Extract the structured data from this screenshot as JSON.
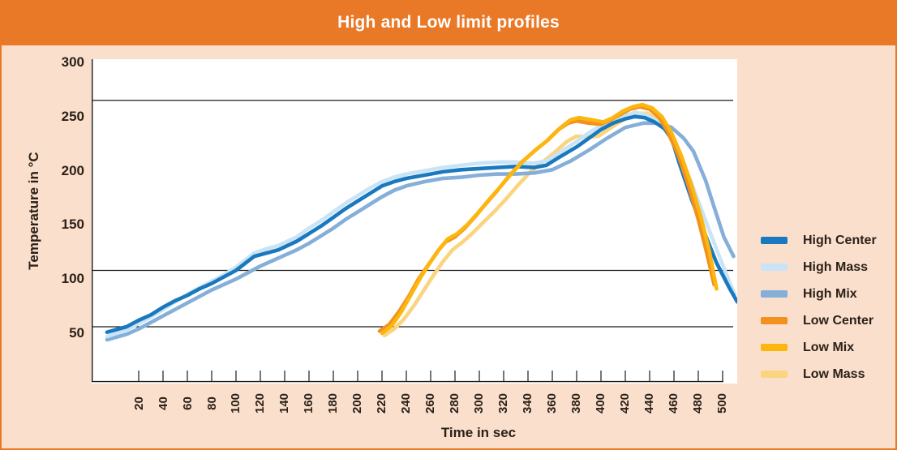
{
  "header": {
    "title": "High and Low limit profiles"
  },
  "colors": {
    "header_bar": "#E97927",
    "frame_border": "#E97927",
    "background": "#FBDFCD",
    "plot_background": "#FFFFFF",
    "axis_line": "#1A1A1A",
    "reference_line": "#1A1A1A",
    "text": "#2B2118",
    "title_text": "#FFFFFF"
  },
  "chart_data": {
    "type": "line",
    "title": "High and Low limit profiles",
    "xlabel": "Time in sec",
    "ylabel": "Temperature in °C",
    "xlim": [
      -19,
      510
    ],
    "ylim": [
      5,
      303
    ],
    "x_ticks": [
      20,
      40,
      60,
      80,
      100,
      120,
      140,
      160,
      180,
      200,
      220,
      240,
      260,
      280,
      300,
      320,
      340,
      360,
      380,
      400,
      420,
      440,
      460,
      480,
      500
    ],
    "y_ticks": [
      300,
      250,
      200,
      150,
      100,
      50
    ],
    "grid": "horizontal-reference-lines-only",
    "reference_lines_temp_c": [
      265,
      108,
      56
    ],
    "legend_position": "right-outside",
    "draw_order": [
      "Low Mass",
      "High Mix",
      "High Mass",
      "High Center",
      "Low Center",
      "Low Mix"
    ],
    "series": [
      {
        "name": "High Center",
        "color": "#1A79BE",
        "points": [
          [
            -6,
            51
          ],
          [
            10,
            56
          ],
          [
            20,
            62
          ],
          [
            30,
            67
          ],
          [
            40,
            74
          ],
          [
            50,
            80
          ],
          [
            60,
            85
          ],
          [
            70,
            91
          ],
          [
            80,
            96
          ],
          [
            90,
            102
          ],
          [
            100,
            108
          ],
          [
            108,
            115
          ],
          [
            115,
            121
          ],
          [
            125,
            124
          ],
          [
            135,
            127
          ],
          [
            150,
            135
          ],
          [
            160,
            142
          ],
          [
            170,
            149
          ],
          [
            180,
            157
          ],
          [
            190,
            165
          ],
          [
            200,
            172
          ],
          [
            210,
            179
          ],
          [
            220,
            186
          ],
          [
            230,
            190
          ],
          [
            240,
            193
          ],
          [
            255,
            196
          ],
          [
            270,
            199
          ],
          [
            285,
            201
          ],
          [
            300,
            202
          ],
          [
            315,
            203
          ],
          [
            330,
            204
          ],
          [
            345,
            203
          ],
          [
            355,
            205
          ],
          [
            365,
            212
          ],
          [
            380,
            222
          ],
          [
            390,
            230
          ],
          [
            400,
            238
          ],
          [
            410,
            244
          ],
          [
            420,
            248
          ],
          [
            428,
            250
          ],
          [
            436,
            249
          ],
          [
            444,
            245
          ],
          [
            452,
            239
          ],
          [
            458,
            230
          ],
          [
            465,
            205
          ],
          [
            475,
            172
          ],
          [
            485,
            143
          ],
          [
            495,
            115
          ],
          [
            505,
            93
          ],
          [
            512,
            79
          ]
        ]
      },
      {
        "name": "High Mass",
        "color": "#C8E4F6",
        "points": [
          [
            -6,
            47
          ],
          [
            10,
            53
          ],
          [
            20,
            59
          ],
          [
            30,
            65
          ],
          [
            40,
            72
          ],
          [
            50,
            79
          ],
          [
            60,
            86
          ],
          [
            70,
            92
          ],
          [
            80,
            98
          ],
          [
            90,
            104
          ],
          [
            100,
            111
          ],
          [
            108,
            118
          ],
          [
            115,
            124
          ],
          [
            125,
            128
          ],
          [
            135,
            131
          ],
          [
            150,
            139
          ],
          [
            160,
            147
          ],
          [
            170,
            154
          ],
          [
            180,
            162
          ],
          [
            190,
            170
          ],
          [
            200,
            177
          ],
          [
            210,
            184
          ],
          [
            220,
            190
          ],
          [
            230,
            194
          ],
          [
            240,
            197
          ],
          [
            255,
            200
          ],
          [
            270,
            203
          ],
          [
            285,
            205
          ],
          [
            300,
            207
          ],
          [
            315,
            208
          ],
          [
            330,
            208
          ],
          [
            345,
            207
          ],
          [
            355,
            209
          ],
          [
            365,
            216
          ],
          [
            380,
            227
          ],
          [
            390,
            235
          ],
          [
            400,
            242
          ],
          [
            410,
            247
          ],
          [
            420,
            251
          ],
          [
            428,
            254
          ],
          [
            436,
            252
          ],
          [
            444,
            247
          ],
          [
            452,
            241
          ],
          [
            460,
            228
          ],
          [
            468,
            207
          ],
          [
            478,
            178
          ],
          [
            488,
            148
          ],
          [
            498,
            119
          ],
          [
            505,
            99
          ],
          [
            510,
            86
          ]
        ]
      },
      {
        "name": "High Mix",
        "color": "#85AFD8",
        "points": [
          [
            -6,
            44
          ],
          [
            10,
            49
          ],
          [
            20,
            54
          ],
          [
            30,
            60
          ],
          [
            40,
            66
          ],
          [
            50,
            72
          ],
          [
            60,
            78
          ],
          [
            70,
            84
          ],
          [
            80,
            90
          ],
          [
            90,
            95
          ],
          [
            100,
            100
          ],
          [
            110,
            106
          ],
          [
            120,
            112
          ],
          [
            130,
            117
          ],
          [
            140,
            122
          ],
          [
            150,
            127
          ],
          [
            160,
            133
          ],
          [
            170,
            140
          ],
          [
            180,
            147
          ],
          [
            190,
            155
          ],
          [
            200,
            162
          ],
          [
            210,
            169
          ],
          [
            220,
            176
          ],
          [
            230,
            182
          ],
          [
            240,
            186
          ],
          [
            255,
            190
          ],
          [
            270,
            193
          ],
          [
            285,
            194
          ],
          [
            300,
            196
          ],
          [
            315,
            197
          ],
          [
            330,
            197
          ],
          [
            345,
            198
          ],
          [
            360,
            201
          ],
          [
            375,
            209
          ],
          [
            390,
            219
          ],
          [
            405,
            230
          ],
          [
            420,
            240
          ],
          [
            435,
            244
          ],
          [
            448,
            244
          ],
          [
            458,
            240
          ],
          [
            468,
            230
          ],
          [
            476,
            218
          ],
          [
            486,
            191
          ],
          [
            494,
            163
          ],
          [
            501,
            139
          ],
          [
            509,
            121
          ]
        ]
      },
      {
        "name": "Low Center",
        "color": "#F2911E",
        "points": [
          [
            218,
            52
          ],
          [
            226,
            58
          ],
          [
            234,
            70
          ],
          [
            242,
            84
          ],
          [
            250,
            100
          ],
          [
            258,
            113
          ],
          [
            266,
            126
          ],
          [
            272,
            134
          ],
          [
            280,
            139
          ],
          [
            288,
            147
          ],
          [
            296,
            157
          ],
          [
            305,
            169
          ],
          [
            315,
            182
          ],
          [
            325,
            196
          ],
          [
            335,
            208
          ],
          [
            345,
            218
          ],
          [
            355,
            227
          ],
          [
            365,
            238
          ],
          [
            373,
            244
          ],
          [
            380,
            246
          ],
          [
            390,
            244
          ],
          [
            400,
            243
          ],
          [
            408,
            247
          ],
          [
            416,
            252
          ],
          [
            424,
            257
          ],
          [
            432,
            259
          ],
          [
            440,
            257
          ],
          [
            448,
            249
          ],
          [
            456,
            234
          ],
          [
            464,
            213
          ],
          [
            472,
            186
          ],
          [
            480,
            155
          ],
          [
            487,
            124
          ],
          [
            493,
            95
          ]
        ]
      },
      {
        "name": "Low Mix",
        "color": "#FCB60E",
        "points": [
          [
            220,
            50
          ],
          [
            228,
            57
          ],
          [
            236,
            70
          ],
          [
            244,
            86
          ],
          [
            252,
            102
          ],
          [
            260,
            116
          ],
          [
            268,
            129
          ],
          [
            274,
            137
          ],
          [
            282,
            142
          ],
          [
            290,
            150
          ],
          [
            298,
            160
          ],
          [
            307,
            172
          ],
          [
            317,
            185
          ],
          [
            327,
            198
          ],
          [
            337,
            210
          ],
          [
            347,
            220
          ],
          [
            357,
            229
          ],
          [
            367,
            240
          ],
          [
            375,
            247
          ],
          [
            382,
            249
          ],
          [
            392,
            247
          ],
          [
            402,
            245
          ],
          [
            410,
            249
          ],
          [
            418,
            255
          ],
          [
            426,
            259
          ],
          [
            434,
            261
          ],
          [
            442,
            258
          ],
          [
            450,
            250
          ],
          [
            458,
            235
          ],
          [
            466,
            214
          ],
          [
            474,
            188
          ],
          [
            482,
            158
          ],
          [
            489,
            126
          ],
          [
            495,
            91
          ]
        ]
      },
      {
        "name": "Low Mass",
        "color": "#FAD47E",
        "points": [
          [
            222,
            48
          ],
          [
            230,
            54
          ],
          [
            238,
            63
          ],
          [
            246,
            75
          ],
          [
            254,
            89
          ],
          [
            262,
            103
          ],
          [
            270,
            116
          ],
          [
            278,
            127
          ],
          [
            286,
            134
          ],
          [
            294,
            142
          ],
          [
            302,
            151
          ],
          [
            312,
            162
          ],
          [
            322,
            174
          ],
          [
            332,
            187
          ],
          [
            342,
            199
          ],
          [
            352,
            208
          ],
          [
            362,
            217
          ],
          [
            372,
            227
          ],
          [
            380,
            232
          ],
          [
            388,
            231
          ],
          [
            398,
            232
          ],
          [
            406,
            238
          ],
          [
            414,
            244
          ],
          [
            422,
            249
          ],
          [
            430,
            253
          ],
          [
            438,
            253
          ],
          [
            446,
            247
          ],
          [
            454,
            236
          ],
          [
            462,
            219
          ],
          [
            470,
            196
          ],
          [
            478,
            168
          ],
          [
            484,
            145
          ],
          [
            491,
            113
          ]
        ]
      }
    ]
  }
}
